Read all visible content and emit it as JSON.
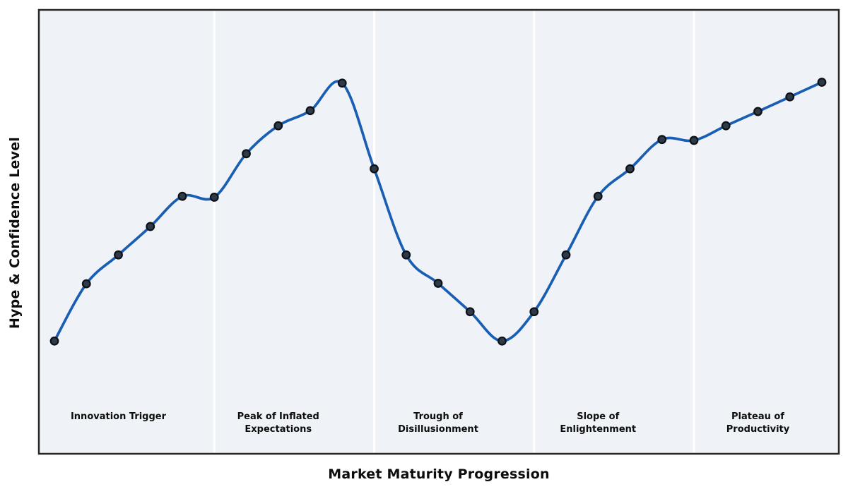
{
  "chart_data": {
    "type": "line",
    "title": "",
    "xlabel": "Market Maturity Progression",
    "ylabel": "Hype & Confidence Level",
    "x": [
      0,
      1,
      2,
      3,
      4,
      5,
      6,
      7,
      8,
      9,
      10,
      11,
      12,
      13,
      14,
      15,
      16,
      17,
      18,
      19,
      20,
      21,
      22,
      23,
      24
    ],
    "series": [
      {
        "name": "hype-confidence-curve",
        "values": [
          25.4,
          38.3,
          44.8,
          51.2,
          58.0,
          57.8,
          67.6,
          73.9,
          77.3,
          83.5,
          64.2,
          44.8,
          38.4,
          32.0,
          25.4,
          32.0,
          44.8,
          58.0,
          64.2,
          70.8,
          70.6,
          73.9,
          77.1,
          80.4,
          83.7
        ]
      }
    ],
    "ylim": [
      0,
      100
    ],
    "xlim": [
      -0.5,
      24.5
    ],
    "grid": false,
    "legend_position": "none",
    "axis_ticks": "none",
    "smoothing": "spline",
    "marker": "circle",
    "phase_dividers_x": [
      5,
      10,
      15,
      20
    ],
    "phases": [
      {
        "name": "innovation-trigger",
        "lines": [
          "Innovation Trigger"
        ],
        "center_x": 2
      },
      {
        "name": "peak-of-inflated-expectations",
        "lines": [
          "Peak of Inflated",
          "Expectations"
        ],
        "center_x": 7
      },
      {
        "name": "trough-of-disillusionment",
        "lines": [
          "Trough of",
          "Disillusionment"
        ],
        "center_x": 12
      },
      {
        "name": "slope-of-enlightenment",
        "lines": [
          "Slope of",
          "Enlightenment"
        ],
        "center_x": 17
      },
      {
        "name": "plateau-of-productivity",
        "lines": [
          "Plateau of",
          "Productivity"
        ],
        "center_x": 22
      }
    ],
    "colors": {
      "figure_background": "#ffffff",
      "plot_background": "#eff3f8",
      "line": "#1a5eb4",
      "marker_fill": "#2e3a47",
      "marker_edge": "#0d1117",
      "divider": "#ffffff",
      "spine": "#262626",
      "label_text": "#0d0d0d"
    }
  }
}
